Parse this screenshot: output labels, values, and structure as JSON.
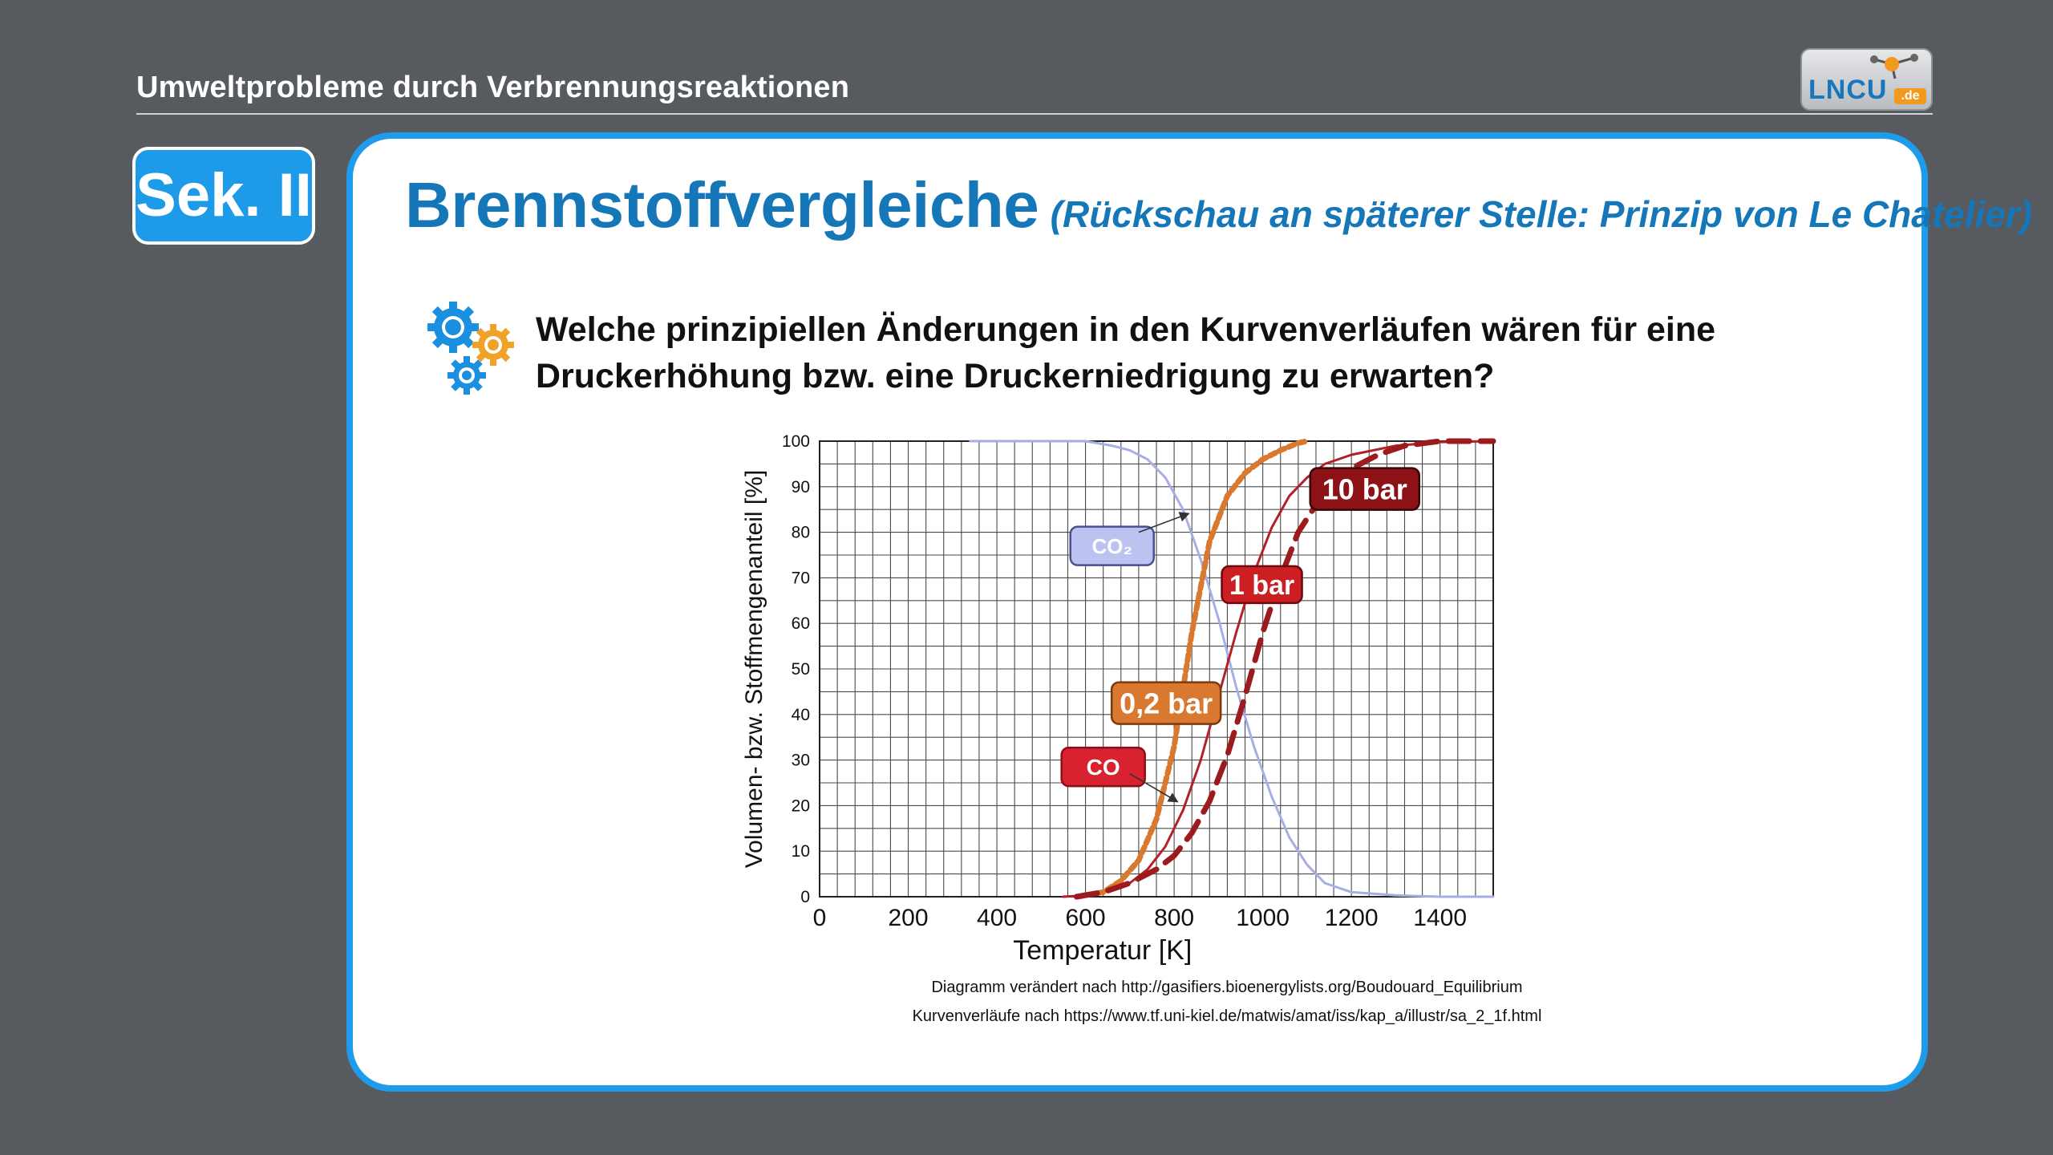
{
  "header": {
    "title": "Umweltprobleme durch Verbrennungsreaktionen",
    "logo_text": "LNCU",
    "logo_suffix": ".de"
  },
  "badge": {
    "label": "Sek. II"
  },
  "slide": {
    "title": "Brennstoffvergleiche",
    "subtitle": "(Rückschau an späterer Stelle: Prinzip von Le Chatelier)",
    "question": "Welche prinzipiellen Änderungen in den Kurvenverläufen wären für eine Druckerhöhung bzw. eine Druckerniedrigung zu erwarten?",
    "source1": "Diagramm verändert nach http://gasifiers.bioenergylists.org/Boudouard_Equilibrium",
    "source2": "Kurvenverläufe nach https://www.tf.uni-kiel.de/matwis/amat/iss/kap_a/illustr/sa_2_1f.html"
  },
  "chart_data": {
    "type": "line",
    "xlabel": "Temperatur [K]",
    "ylabel": "Volumen- bzw. Stoffmengenanteil [%]",
    "xlim": [
      0,
      1520
    ],
    "ylim": [
      0,
      100
    ],
    "xticks": [
      0,
      200,
      400,
      600,
      800,
      1000,
      1200,
      1400
    ],
    "yticks": [
      0,
      10,
      20,
      30,
      40,
      50,
      60,
      70,
      80,
      90,
      100
    ],
    "grid": true,
    "series": [
      {
        "name": "CO₂",
        "color": "#a7aee6",
        "style": "solid",
        "x": [
          340,
          600,
          660,
          700,
          740,
          780,
          820,
          860,
          900,
          940,
          980,
          1020,
          1060,
          1100,
          1140,
          1200,
          1300,
          1400,
          1520
        ],
        "y": [
          100,
          100,
          99,
          98,
          96,
          92,
          85,
          74,
          61,
          46,
          33,
          22,
          13,
          7,
          3,
          1,
          0.3,
          0,
          0
        ]
      },
      {
        "name": "CO",
        "color": "#b4202a",
        "style": "solid",
        "x": [
          550,
          600,
          660,
          700,
          740,
          780,
          820,
          860,
          900,
          940,
          980,
          1020,
          1060,
          1100,
          1140,
          1200,
          1300,
          1400,
          1520
        ],
        "y": [
          0,
          0.3,
          1.5,
          3,
          6,
          11,
          19,
          30,
          44,
          58,
          71,
          81,
          88,
          92,
          95,
          97,
          99,
          99.8,
          100
        ]
      },
      {
        "name": "0,2 bar",
        "color": "#d9782f",
        "style": "dotted",
        "x": [
          580,
          640,
          680,
          720,
          760,
          800,
          840,
          880,
          920,
          960,
          1000,
          1040,
          1080,
          1100
        ],
        "y": [
          0,
          1,
          3.5,
          8,
          17,
          33,
          58,
          78,
          88,
          93,
          96,
          98,
          99.6,
          100
        ]
      },
      {
        "name": "10 bar",
        "color": "#9b1b1e",
        "style": "dashed",
        "x": [
          580,
          640,
          700,
          760,
          800,
          840,
          880,
          920,
          960,
          1000,
          1040,
          1080,
          1120,
          1160,
          1200,
          1260,
          1320,
          1400,
          1520
        ],
        "y": [
          0,
          1,
          3,
          6,
          9,
          14,
          21,
          31,
          44,
          58,
          70,
          80,
          86,
          90,
          94,
          97,
          99,
          100,
          100
        ]
      }
    ],
    "labels": [
      {
        "text": "CO₂",
        "bg": "#bcc3f0",
        "border": "#4a4f8e",
        "color": "#ffffff"
      },
      {
        "text": "CO",
        "bg": "#d8222f",
        "border": "#8a1016",
        "color": "#ffffff"
      },
      {
        "text": "0,2 bar",
        "bg": "#d9782f",
        "border": "#7a3a10",
        "color": "#ffffff"
      },
      {
        "text": "1 bar",
        "bg": "#cc1f24",
        "border": "#6a0a0c",
        "color": "#ffffff"
      },
      {
        "text": "10 bar",
        "bg": "#8c1215",
        "border": "#3a0406",
        "color": "#ffffff"
      }
    ]
  }
}
